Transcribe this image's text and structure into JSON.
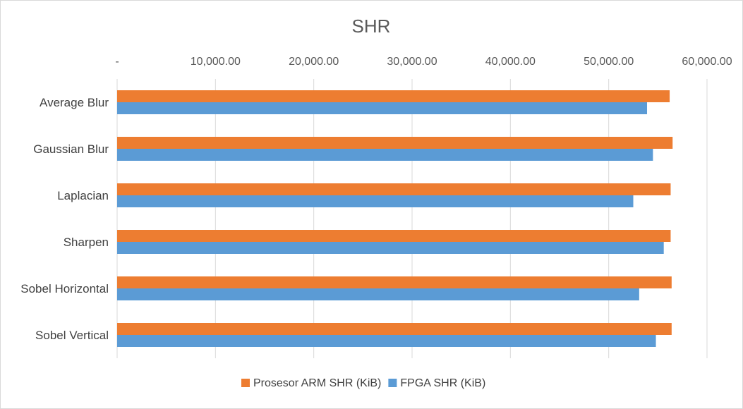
{
  "chart_data": {
    "type": "bar",
    "orientation": "horizontal",
    "title": "SHR",
    "categories": [
      "Average Blur",
      "Gaussian Blur",
      "Laplacian",
      "Sharpen",
      "Sobel Horizontal",
      "Sobel Vertical"
    ],
    "series": [
      {
        "name": "Prosesor ARM SHR (KiB)",
        "color": "#ed7d31",
        "values": [
          56200,
          56500,
          56300,
          56300,
          56400,
          56400
        ]
      },
      {
        "name": "FPGA SHR (KiB)",
        "color": "#5b9bd5",
        "values": [
          53900,
          54500,
          52500,
          55600,
          53100,
          54800
        ]
      }
    ],
    "xlim": [
      0,
      60000
    ],
    "xticks": [
      0,
      10000,
      20000,
      30000,
      40000,
      50000,
      60000
    ],
    "xtick_labels": [
      "-",
      "10,000.00",
      "20,000.00",
      "30,000.00",
      "40,000.00",
      "50,000.00",
      "60,000.00"
    ],
    "x_axis_position": "top",
    "grid": true,
    "legend": "bottom"
  }
}
